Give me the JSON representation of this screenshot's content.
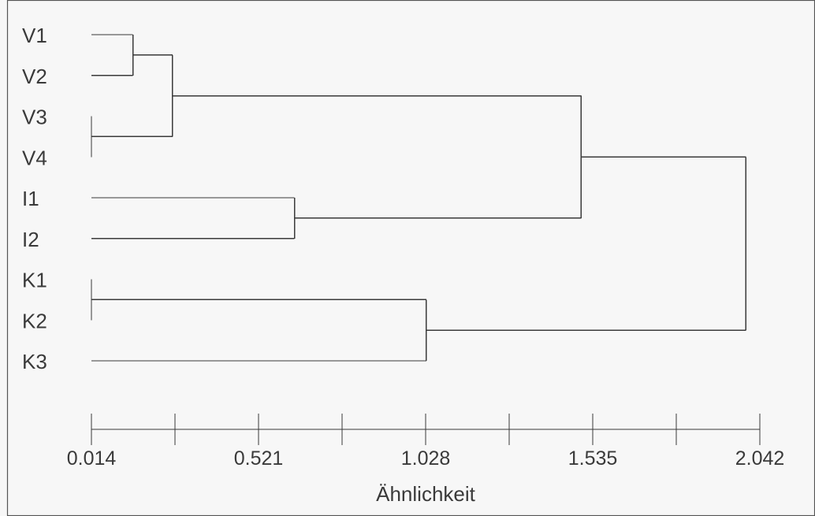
{
  "chart_data": {
    "type": "dendrogram",
    "leaves": [
      "V1",
      "V2",
      "V3",
      "V4",
      "I1",
      "I2",
      "K1",
      "K2",
      "K3"
    ],
    "merges": [
      {
        "id": "c1",
        "children": [
          "V1",
          "V2"
        ],
        "height": 0.14
      },
      {
        "id": "c2",
        "children": [
          "V3",
          "V4"
        ],
        "height": 0.014
      },
      {
        "id": "c3",
        "children": [
          "c1",
          "c2"
        ],
        "height": 0.26
      },
      {
        "id": "c4",
        "children": [
          "I1",
          "I2"
        ],
        "height": 0.63
      },
      {
        "id": "c5",
        "children": [
          "c3",
          "c4"
        ],
        "height": 1.5
      },
      {
        "id": "c6",
        "children": [
          "K1",
          "K2"
        ],
        "height": 0.014
      },
      {
        "id": "c7",
        "children": [
          "c6",
          "K3"
        ],
        "height": 1.03
      },
      {
        "id": "c8",
        "children": [
          "c5",
          "c7"
        ],
        "height": 2.0
      }
    ],
    "xaxis": {
      "label": "Ähnlichkeit",
      "range": [
        0.014,
        2.042
      ],
      "tick_labels": [
        "0.014",
        "0.521",
        "1.028",
        "1.535",
        "2.042"
      ],
      "minor_ticks": 4
    }
  },
  "colors": {
    "background": "#f7f7f7",
    "lines": "#3a3a3a",
    "text": "#3a3a3a"
  }
}
